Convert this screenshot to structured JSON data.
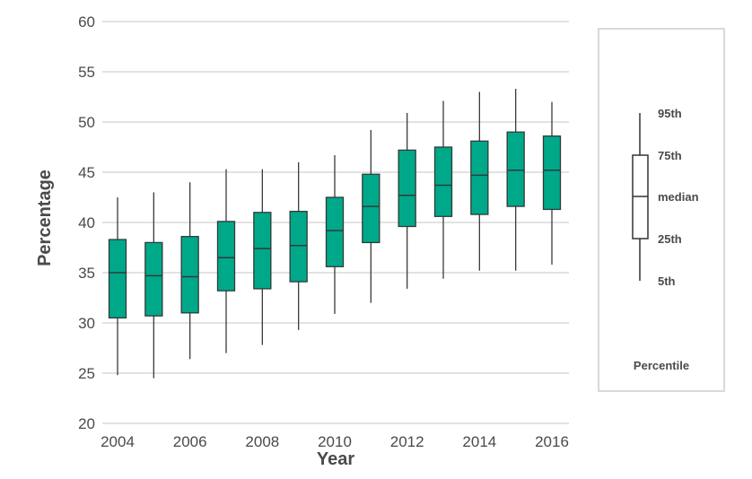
{
  "chart_data": {
    "type": "boxplot",
    "xlabel": "Year",
    "ylabel": "Percentage",
    "ylim": [
      20,
      60
    ],
    "yticks": [
      20,
      25,
      30,
      35,
      40,
      45,
      50,
      55,
      60
    ],
    "xlim": [
      2004,
      2016
    ],
    "xticks": [
      2004,
      2006,
      2008,
      2010,
      2012,
      2014,
      2016
    ],
    "grid": "horizontal",
    "box_color": "#00a88a",
    "categories": [
      2004,
      2005,
      2006,
      2007,
      2008,
      2009,
      2010,
      2011,
      2012,
      2013,
      2014,
      2015,
      2016
    ],
    "boxes": [
      {
        "x": 2004,
        "p5": 24.8,
        "p25": 30.5,
        "median": 35.0,
        "p75": 38.3,
        "p95": 42.5
      },
      {
        "x": 2005,
        "p5": 24.5,
        "p25": 30.7,
        "median": 34.7,
        "p75": 38.0,
        "p95": 43.0
      },
      {
        "x": 2006,
        "p5": 26.4,
        "p25": 31.0,
        "median": 34.6,
        "p75": 38.6,
        "p95": 44.0
      },
      {
        "x": 2007,
        "p5": 27.0,
        "p25": 33.2,
        "median": 36.5,
        "p75": 40.1,
        "p95": 45.3
      },
      {
        "x": 2008,
        "p5": 27.8,
        "p25": 33.4,
        "median": 37.4,
        "p75": 41.0,
        "p95": 45.3
      },
      {
        "x": 2009,
        "p5": 29.3,
        "p25": 34.1,
        "median": 37.7,
        "p75": 41.1,
        "p95": 46.0
      },
      {
        "x": 2010,
        "p5": 30.9,
        "p25": 35.6,
        "median": 39.2,
        "p75": 42.5,
        "p95": 46.7
      },
      {
        "x": 2011,
        "p5": 32.0,
        "p25": 38.0,
        "median": 41.6,
        "p75": 44.8,
        "p95": 49.2
      },
      {
        "x": 2012,
        "p5": 33.4,
        "p25": 39.6,
        "median": 42.7,
        "p75": 47.2,
        "p95": 50.9
      },
      {
        "x": 2013,
        "p5": 34.4,
        "p25": 40.6,
        "median": 43.7,
        "p75": 47.5,
        "p95": 52.1
      },
      {
        "x": 2014,
        "p5": 35.2,
        "p25": 40.8,
        "median": 44.7,
        "p75": 48.1,
        "p95": 53.0
      },
      {
        "x": 2015,
        "p5": 35.2,
        "p25": 41.6,
        "median": 45.2,
        "p75": 49.0,
        "p95": 53.3
      },
      {
        "x": 2016,
        "p5": 35.8,
        "p25": 41.3,
        "median": 45.2,
        "p75": 48.6,
        "p95": 52.0
      }
    ]
  },
  "legend": {
    "title": "Percentile",
    "labels": {
      "p95": "95th",
      "p75": "75th",
      "median": "median",
      "p25": "25th",
      "p5": "5th"
    },
    "box_fill": "#ffffff"
  }
}
